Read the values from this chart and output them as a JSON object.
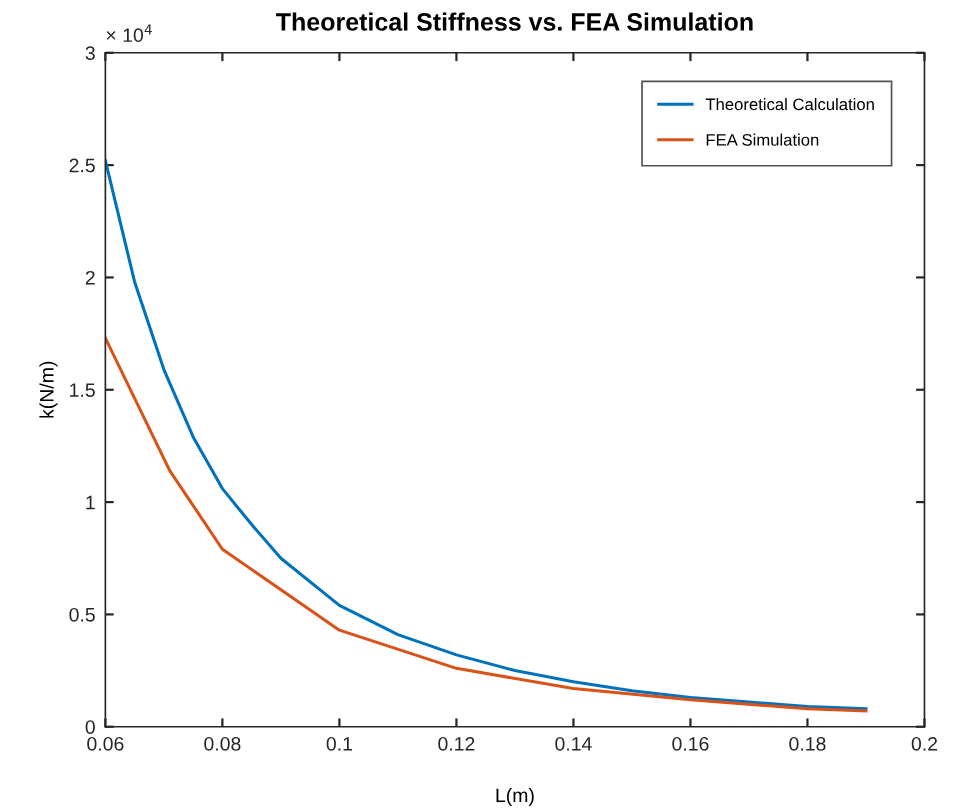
{
  "chart_data": {
    "type": "line",
    "title": "Theoretical Stiffness vs. FEA Simulation",
    "xlabel": "L(m)",
    "ylabel": "k(N/m)",
    "annotations": [
      "× 10$^{4}$"
    ],
    "series": [
      {
        "name": "Theoretical Calculation",
        "color": "#0072bd",
        "x": [
          0.06,
          0.065,
          0.07,
          0.075,
          0.08,
          0.085,
          0.09,
          0.1,
          0.11,
          0.12,
          0.13,
          0.14,
          0.15,
          0.16,
          0.17,
          0.18,
          0.19
        ],
        "values": [
          2.52,
          1.98,
          1.59,
          1.29,
          1.06,
          0.9,
          0.75,
          0.54,
          0.41,
          0.32,
          0.25,
          0.2,
          0.16,
          0.13,
          0.11,
          0.09,
          0.08
        ]
      },
      {
        "name": "FEA Simulation",
        "color": "#d95319",
        "x": [
          0.06,
          0.071,
          0.08,
          0.1,
          0.12,
          0.14,
          0.16,
          0.18,
          0.19
        ],
        "values": [
          1.73,
          1.14,
          0.79,
          0.43,
          0.26,
          0.17,
          0.12,
          0.08,
          0.07
        ]
      }
    ],
    "xlim": [
      0.06,
      0.2
    ],
    "xticks": [
      0.06,
      0.08,
      0.1,
      0.12,
      0.14,
      0.16,
      0.18,
      0.2
    ],
    "ylim": [
      0,
      3
    ],
    "yticks": [
      0,
      0.5,
      1,
      1.5,
      2,
      2.5,
      3
    ],
    "grid": false,
    "legend": "top right",
    "marker": "none",
    "line_style": "solid"
  }
}
